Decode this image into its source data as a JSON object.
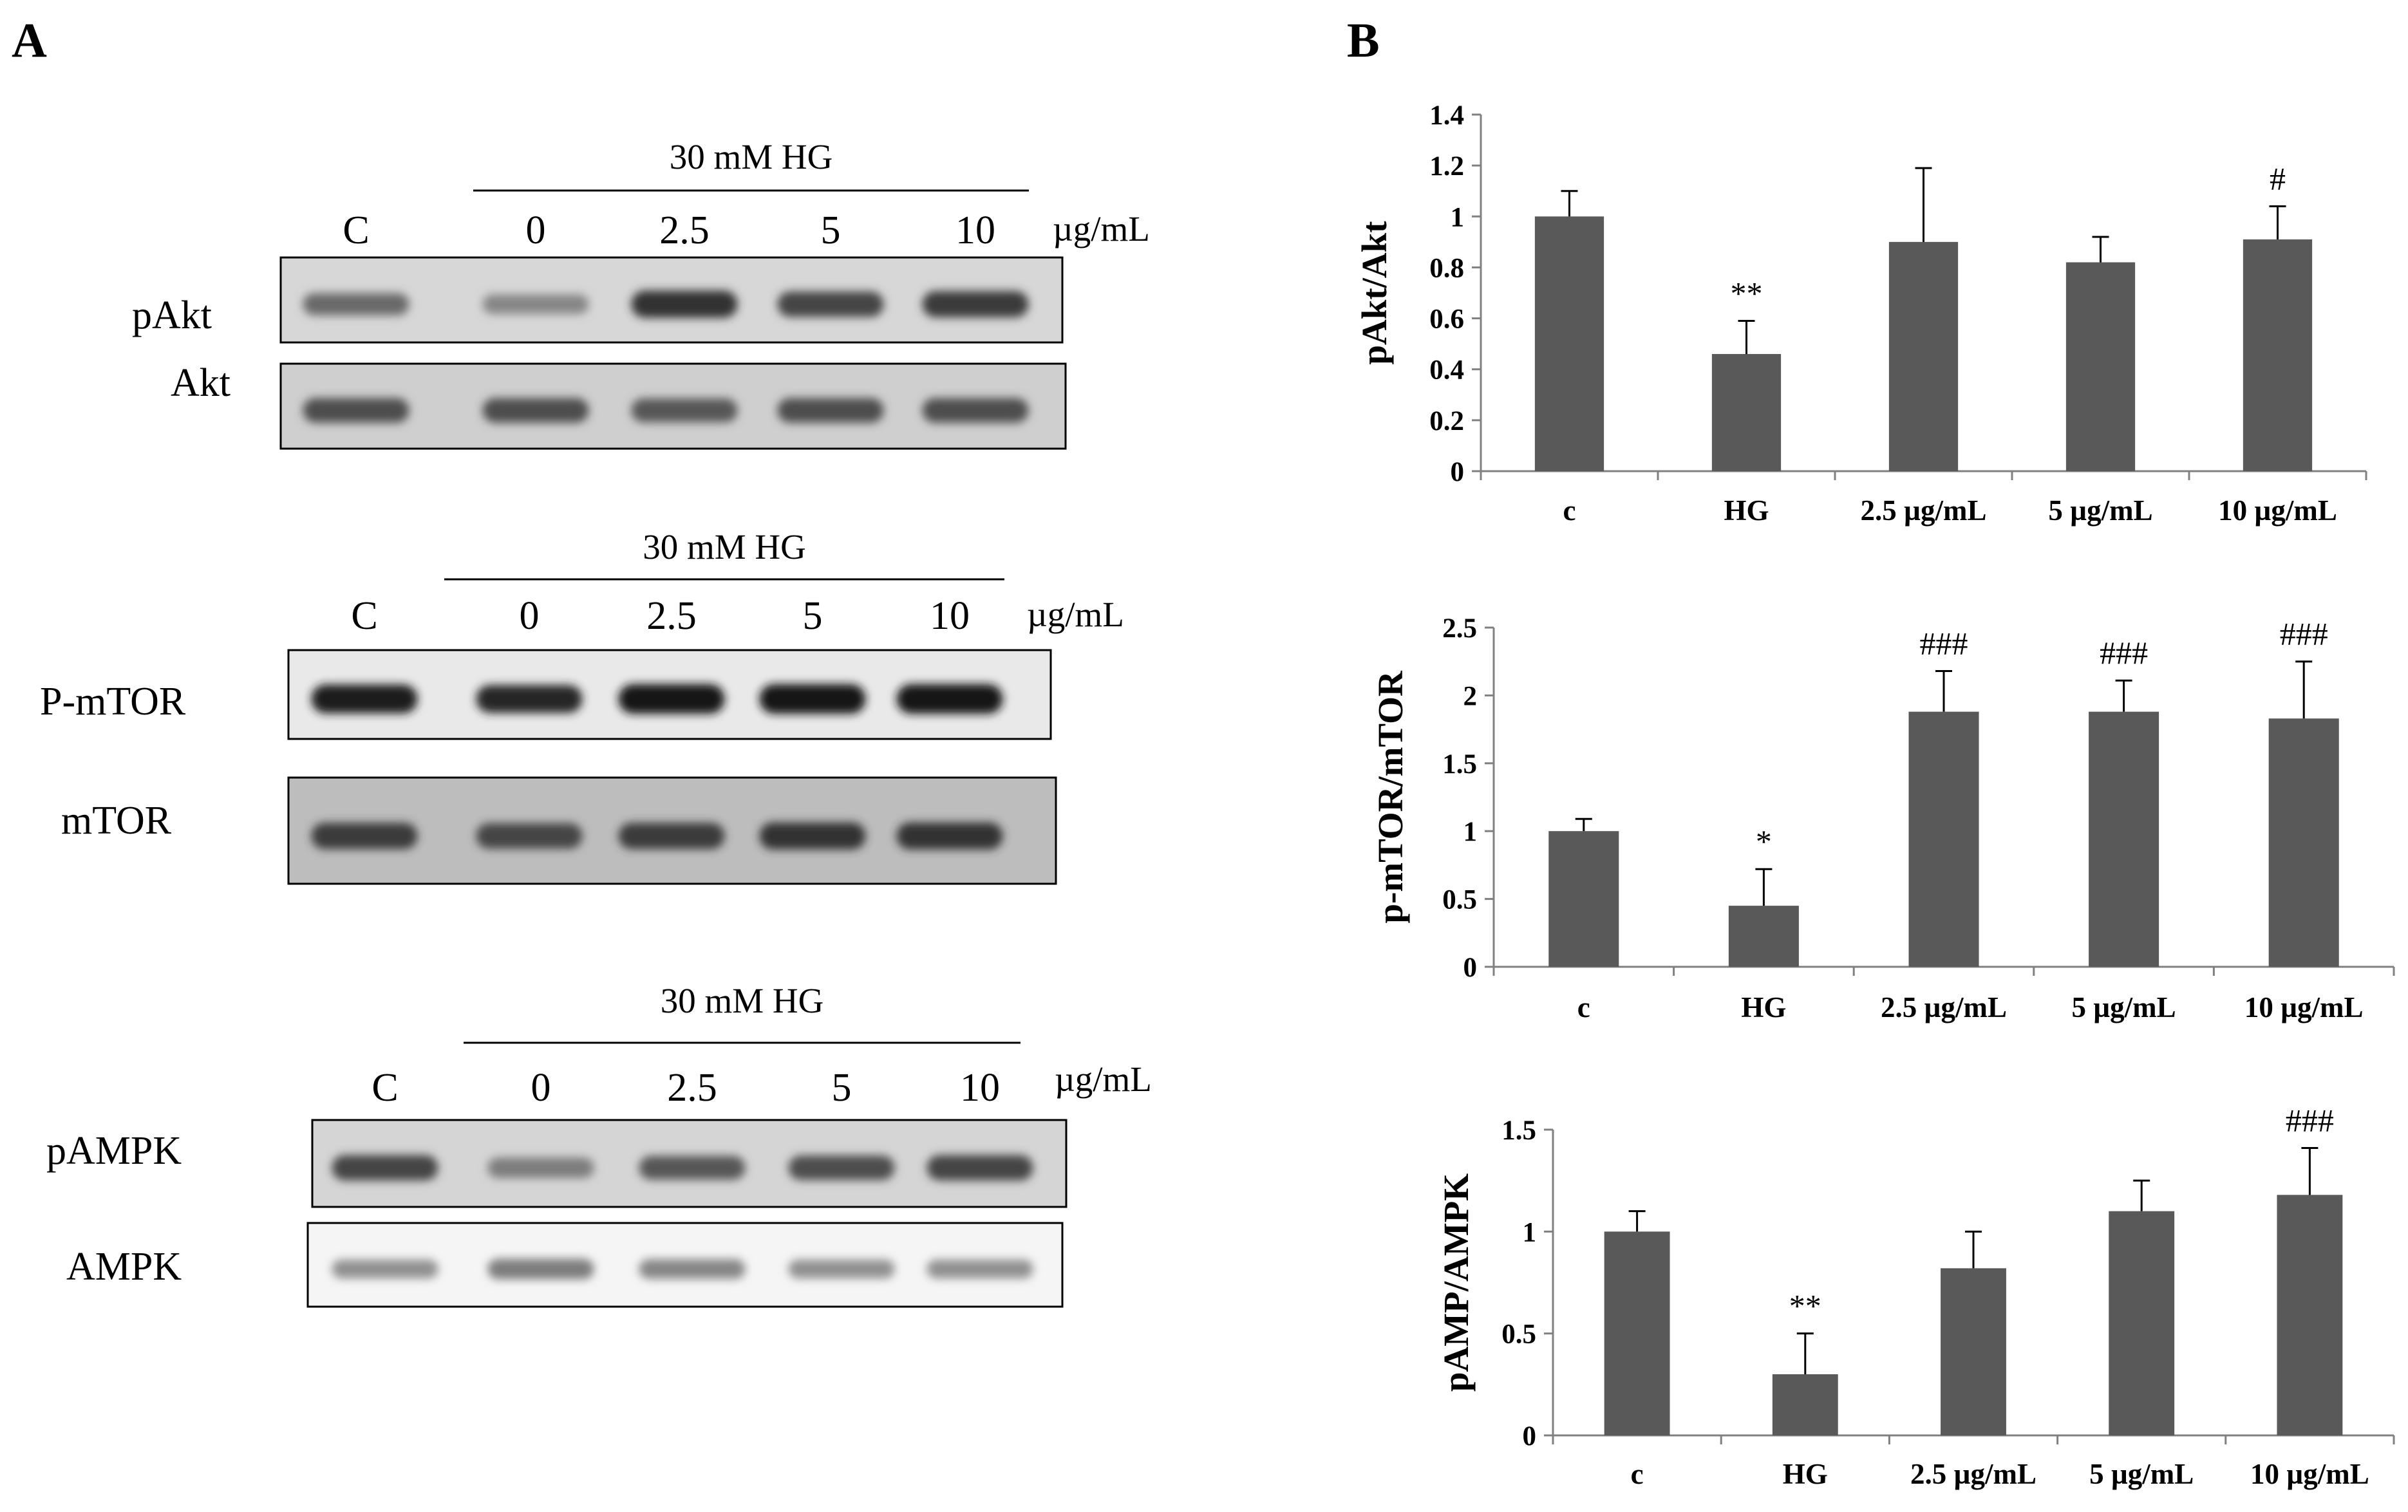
{
  "panels": {
    "left": "A",
    "right": "B"
  },
  "blots": [
    {
      "group_label": "30 mM HG",
      "lanes": [
        "C",
        "0",
        "2.5",
        "5",
        "10"
      ],
      "unit": "µg/mL",
      "rows": [
        {
          "name": "pAkt",
          "intensities": [
            0.55,
            0.4,
            0.85,
            0.75,
            0.8
          ],
          "background": "#d7d7d7"
        },
        {
          "name": "Akt",
          "intensities": [
            0.7,
            0.7,
            0.65,
            0.7,
            0.7
          ],
          "background": "#cfcfcf"
        }
      ]
    },
    {
      "group_label": "30 mM HG",
      "lanes": [
        "C",
        "0",
        "2.5",
        "5",
        "10"
      ],
      "unit": "µg/mL",
      "rows": [
        {
          "name": "P-mTOR",
          "intensities": [
            0.95,
            0.9,
            1.0,
            1.0,
            1.0
          ],
          "background": "#e9e9e9"
        },
        {
          "name": "mTOR",
          "intensities": [
            0.8,
            0.75,
            0.8,
            0.85,
            0.85
          ],
          "background": "#bdbdbd"
        }
      ]
    },
    {
      "group_label": "30 mM HG",
      "lanes": [
        "C",
        "0",
        "2.5",
        "5",
        "10"
      ],
      "unit": "µg/mL",
      "rows": [
        {
          "name": "pAMPK",
          "intensities": [
            0.75,
            0.45,
            0.65,
            0.7,
            0.75
          ],
          "background": "#d5d5d5"
        },
        {
          "name": "AMPK",
          "intensities": [
            0.35,
            0.45,
            0.4,
            0.35,
            0.35
          ],
          "background": "#f5f5f5"
        }
      ]
    }
  ],
  "colors": {
    "bar": "#595959",
    "axis": "#808080"
  },
  "chart_data": [
    {
      "type": "bar",
      "categories": [
        "c",
        "HG",
        "2.5 µg/mL",
        "5 µg/mL",
        "10 µg/mL"
      ],
      "values": [
        1.0,
        0.46,
        0.9,
        0.82,
        0.91
      ],
      "errors": [
        0.1,
        0.13,
        0.29,
        0.1,
        0.13
      ],
      "annotations": [
        "",
        "**",
        "",
        "",
        "#"
      ],
      "ylabel": "pAkt/Akt",
      "ylim": [
        0,
        1.4
      ],
      "yticks": [
        "0",
        "0.2",
        "0.4",
        "0.6",
        "0.8",
        "1",
        "1.2",
        "1.4"
      ],
      "grid": false
    },
    {
      "type": "bar",
      "categories": [
        "c",
        "HG",
        "2.5 µg/mL",
        "5 µg/mL",
        "10 µg/mL"
      ],
      "values": [
        1.0,
        0.45,
        1.88,
        1.88,
        1.83
      ],
      "errors": [
        0.09,
        0.27,
        0.3,
        0.23,
        0.42
      ],
      "annotations": [
        "",
        "*",
        "###",
        "###",
        "###"
      ],
      "ylabel": "p-mTOR/mTOR",
      "ylim": [
        0,
        2.5
      ],
      "yticks": [
        "0",
        "0.5",
        "1",
        "1.5",
        "2",
        "2.5"
      ],
      "grid": false
    },
    {
      "type": "bar",
      "categories": [
        "c",
        "HG",
        "2.5 µg/mL",
        "5 µg/mL",
        "10 µg/mL"
      ],
      "values": [
        1.0,
        0.3,
        0.82,
        1.1,
        1.18
      ],
      "errors": [
        0.1,
        0.2,
        0.18,
        0.15,
        0.23
      ],
      "annotations": [
        "",
        "**",
        "",
        "",
        "###"
      ],
      "ylabel": "pAMP/AMPK",
      "ylim": [
        0,
        1.5
      ],
      "yticks": [
        "0",
        "0.5",
        "1",
        "1.5"
      ],
      "grid": false
    }
  ]
}
